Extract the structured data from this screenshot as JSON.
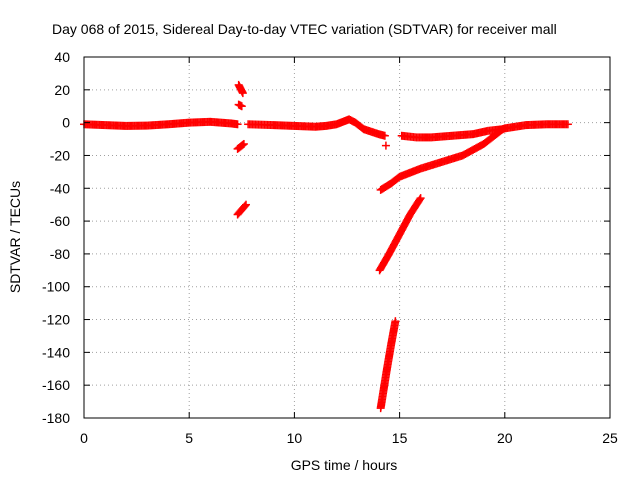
{
  "chart_data": {
    "type": "scatter",
    "title": "Day 068 of 2015, Sidereal Day-to-day VTEC variation (SDTVAR) for receiver mall",
    "xlabel": "GPS time / hours",
    "ylabel": "SDTVAR / TECUs",
    "xlim": [
      0,
      25
    ],
    "ylim": [
      -180,
      40
    ],
    "xticks": [
      0,
      5,
      10,
      15,
      20,
      25
    ],
    "yticks": [
      -180,
      -160,
      -140,
      -120,
      -100,
      -80,
      -60,
      -40,
      -20,
      0,
      20,
      40
    ],
    "grid": true,
    "legend": "none",
    "marker": "plus",
    "color": "#ff0000",
    "segments": [
      [
        [
          0,
          -1
        ],
        [
          1,
          -1.5
        ],
        [
          2,
          -2
        ],
        [
          3,
          -1.8
        ],
        [
          4,
          -1
        ],
        [
          5,
          0
        ],
        [
          6,
          0.5
        ],
        [
          7,
          -0.5
        ],
        [
          7.3,
          -1
        ]
      ],
      [
        [
          7.35,
          23
        ],
        [
          7.55,
          18
        ]
      ],
      [
        [
          7.35,
          11
        ],
        [
          7.5,
          10
        ]
      ],
      [
        [
          7.3,
          -16
        ],
        [
          7.6,
          -13
        ]
      ],
      [
        [
          7.3,
          -56
        ],
        [
          7.7,
          -50
        ]
      ],
      [
        [
          7.8,
          -1
        ],
        [
          9,
          -1.5
        ],
        [
          10,
          -2
        ],
        [
          11,
          -2.5
        ],
        [
          11.5,
          -2
        ],
        [
          12,
          -1
        ],
        [
          12.4,
          1
        ],
        [
          12.6,
          2
        ],
        [
          12.9,
          0
        ],
        [
          13.3,
          -4
        ],
        [
          14,
          -7
        ],
        [
          14.3,
          -8
        ]
      ],
      [
        [
          14.35,
          -14
        ]
      ],
      [
        [
          14.1,
          -41
        ],
        [
          14.6,
          -37
        ],
        [
          15.0,
          -33
        ],
        [
          16,
          -28
        ],
        [
          17,
          -24
        ],
        [
          18,
          -20
        ],
        [
          19,
          -13
        ],
        [
          19.5,
          -8
        ],
        [
          19.9,
          -4
        ]
      ],
      [
        [
          15.1,
          -8
        ],
        [
          15.8,
          -9
        ],
        [
          16.5,
          -9
        ],
        [
          17.5,
          -8
        ],
        [
          18.5,
          -7
        ],
        [
          19.2,
          -5
        ],
        [
          19.9,
          -4
        ],
        [
          20,
          -3.5
        ],
        [
          21,
          -1.5
        ],
        [
          22,
          -1
        ],
        [
          23,
          -1
        ]
      ],
      [
        [
          14.05,
          -90
        ],
        [
          14.5,
          -80
        ],
        [
          15.0,
          -68
        ],
        [
          15.5,
          -56
        ],
        [
          16.0,
          -46
        ]
      ],
      [
        [
          14.1,
          -174
        ],
        [
          14.4,
          -150
        ],
        [
          14.6,
          -135
        ],
        [
          14.8,
          -121
        ]
      ]
    ]
  }
}
